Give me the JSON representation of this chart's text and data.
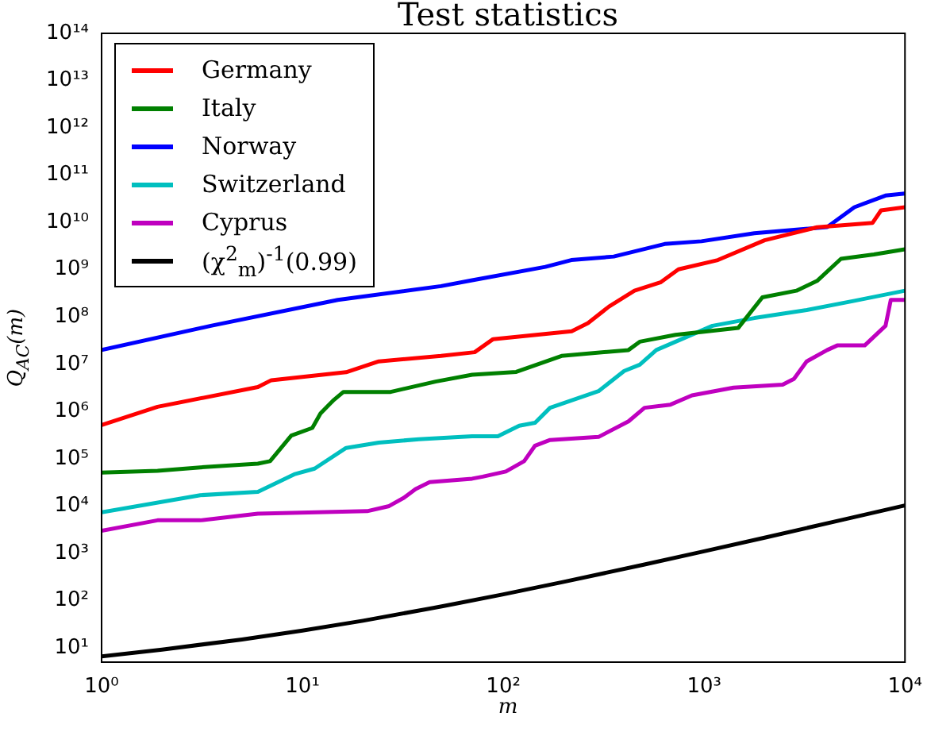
{
  "chart_data": {
    "type": "line",
    "title": "Test statistics",
    "xlabel": "m",
    "ylabel": "Q$_{AC}$(m)",
    "log": "xy",
    "grid": false,
    "legend": "top left",
    "marker": "none",
    "line_style": "solid",
    "xlim": [
      1,
      10000
    ],
    "xticks": [
      {
        "value": 1,
        "label": "10⁰"
      },
      {
        "value": 10,
        "label": "10¹"
      },
      {
        "value": 100,
        "label": "10²"
      },
      {
        "value": 1000,
        "label": "10³"
      },
      {
        "value": 10000,
        "label": "10⁴"
      }
    ],
    "ylim": [
      5,
      100000000000000.0
    ],
    "yticks": [
      {
        "value": 10,
        "label": "10¹"
      },
      {
        "value": 100,
        "label": "10²"
      },
      {
        "value": 1000,
        "label": "10³"
      },
      {
        "value": 10000,
        "label": "10⁴"
      },
      {
        "value": 100000,
        "label": "10⁵"
      },
      {
        "value": 1000000,
        "label": "10⁶"
      },
      {
        "value": 10000000,
        "label": "10⁷"
      },
      {
        "value": 100000000,
        "label": "10⁸"
      },
      {
        "value": 1000000000,
        "label": "10⁹"
      },
      {
        "value": 10000000000,
        "label": "10¹⁰"
      },
      {
        "value": 100000000000,
        "label": "10¹¹"
      },
      {
        "value": 1000000000000,
        "label": "10¹²"
      },
      {
        "value": 10000000000000,
        "label": "10¹³"
      },
      {
        "value": 100000000000000,
        "label": "10¹⁴"
      }
    ],
    "series": [
      {
        "name": "Germany",
        "color": "#ff0000",
        "x": [
          1,
          1.9,
          6,
          7,
          16.5,
          24,
          49,
          72,
          89,
          219,
          264,
          336,
          450,
          606,
          745,
          1170,
          2000,
          3650,
          6900,
          7600,
          10000
        ],
        "values": [
          520000.0,
          1260000.0,
          3300000.0,
          4600000.0,
          6800000.0,
          11500000.0,
          15000000.0,
          18000000.0,
          34000000.0,
          50000000.0,
          74000000.0,
          166000000.0,
          360000000.0,
          540000000.0,
          1020000000.0,
          1600000000.0,
          4200000000.0,
          7900000000.0,
          9800000000.0,
          18000000000.0,
          21000000000.0
        ]
      },
      {
        "name": "Italy",
        "color": "#008000",
        "x": [
          1,
          1.9,
          3.1,
          6,
          6.9,
          8.8,
          11.2,
          12.3,
          14.2,
          16,
          27.5,
          46,
          70,
          116,
          195,
          420,
          478,
          720,
          1480,
          1950,
          2880,
          3650,
          4800,
          7000,
          10000
        ],
        "values": [
          51000.0,
          56000.0,
          66000.0,
          79000.0,
          89000.0,
          310000.0,
          450000.0,
          910000.0,
          1700000.0,
          2600000.0,
          2600000.0,
          4300000.0,
          6000000.0,
          6900000.0,
          15000000.0,
          20000000.0,
          30000000.0,
          42000000.0,
          59000000.0,
          260000000.0,
          360000000.0,
          580000000.0,
          1700000000.0,
          2100000000.0,
          2700000000.0
        ]
      },
      {
        "name": "Norway",
        "color": "#0000ff",
        "x": [
          1,
          3.5,
          15,
          49,
          70,
          162,
          218,
          355,
          636,
          970,
          1780,
          4100,
          5600,
          8000,
          10000
        ],
        "values": [
          20000000.0,
          65000000.0,
          230000000.0,
          450000000.0,
          600000000.0,
          1150000000.0,
          1600000000.0,
          1900000000.0,
          3500000000.0,
          4000000000.0,
          5900000000.0,
          8000000000.0,
          21000000000.0,
          37000000000.0,
          41000000000.0
        ]
      },
      {
        "name": "Switzerland",
        "color": "#00bfbf",
        "x": [
          1,
          3.1,
          6,
          9.1,
          11.5,
          16.5,
          24,
          38,
          70,
          94,
          120,
          144,
          171,
          298,
          400,
          478,
          578,
          1100,
          1780,
          3240,
          5600,
          10000
        ],
        "values": [
          7400.0,
          17000.0,
          20000.0,
          47000.0,
          62000.0,
          170000.0,
          220000.0,
          260000.0,
          300000.0,
          300000.0,
          500000.0,
          580000.0,
          1200000.0,
          2700000.0,
          7200000.0,
          9800000.0,
          20000000.0,
          65000000.0,
          95000000.0,
          140000000.0,
          220000000.0,
          360000000.0
        ]
      },
      {
        "name": "Cyprus",
        "color": "#bf00bf",
        "x": [
          1,
          1.9,
          3.1,
          6,
          21,
          27,
          32,
          36.6,
          43,
          70,
          79,
          103,
          127,
          144,
          171,
          298,
          420,
          505,
          680,
          870,
          1400,
          2460,
          2800,
          3240,
          4100,
          4600,
          6300,
          8000,
          8500,
          10000
        ],
        "values": [
          3000.0,
          5000.0,
          5000.0,
          6900.0,
          7800.0,
          10000.0,
          15000.0,
          23000.0,
          32000.0,
          38000.0,
          42000.0,
          54000.0,
          89000.0,
          190000.0,
          250000.0,
          290000.0,
          620000.0,
          1200000.0,
          1400000.0,
          2200000.0,
          3200000.0,
          3700000.0,
          4900000.0,
          11500000.0,
          20000000.0,
          25000000.0,
          25000000.0,
          65000000.0,
          230000000.0,
          230000000.0
        ]
      },
      {
        "name": "(χ$^{2}$$_{m}$)$^{-1}$(0.99)",
        "color": "#000000",
        "x": [
          1,
          2,
          5,
          10,
          20,
          50,
          100,
          200,
          500,
          1000,
          2000,
          5000,
          10000
        ],
        "values": [
          6.63,
          9.21,
          15.09,
          23.21,
          37.57,
          76.15,
          135.8,
          249.4,
          576.5,
          1106.9,
          2147,
          5235,
          10331
        ]
      }
    ]
  }
}
